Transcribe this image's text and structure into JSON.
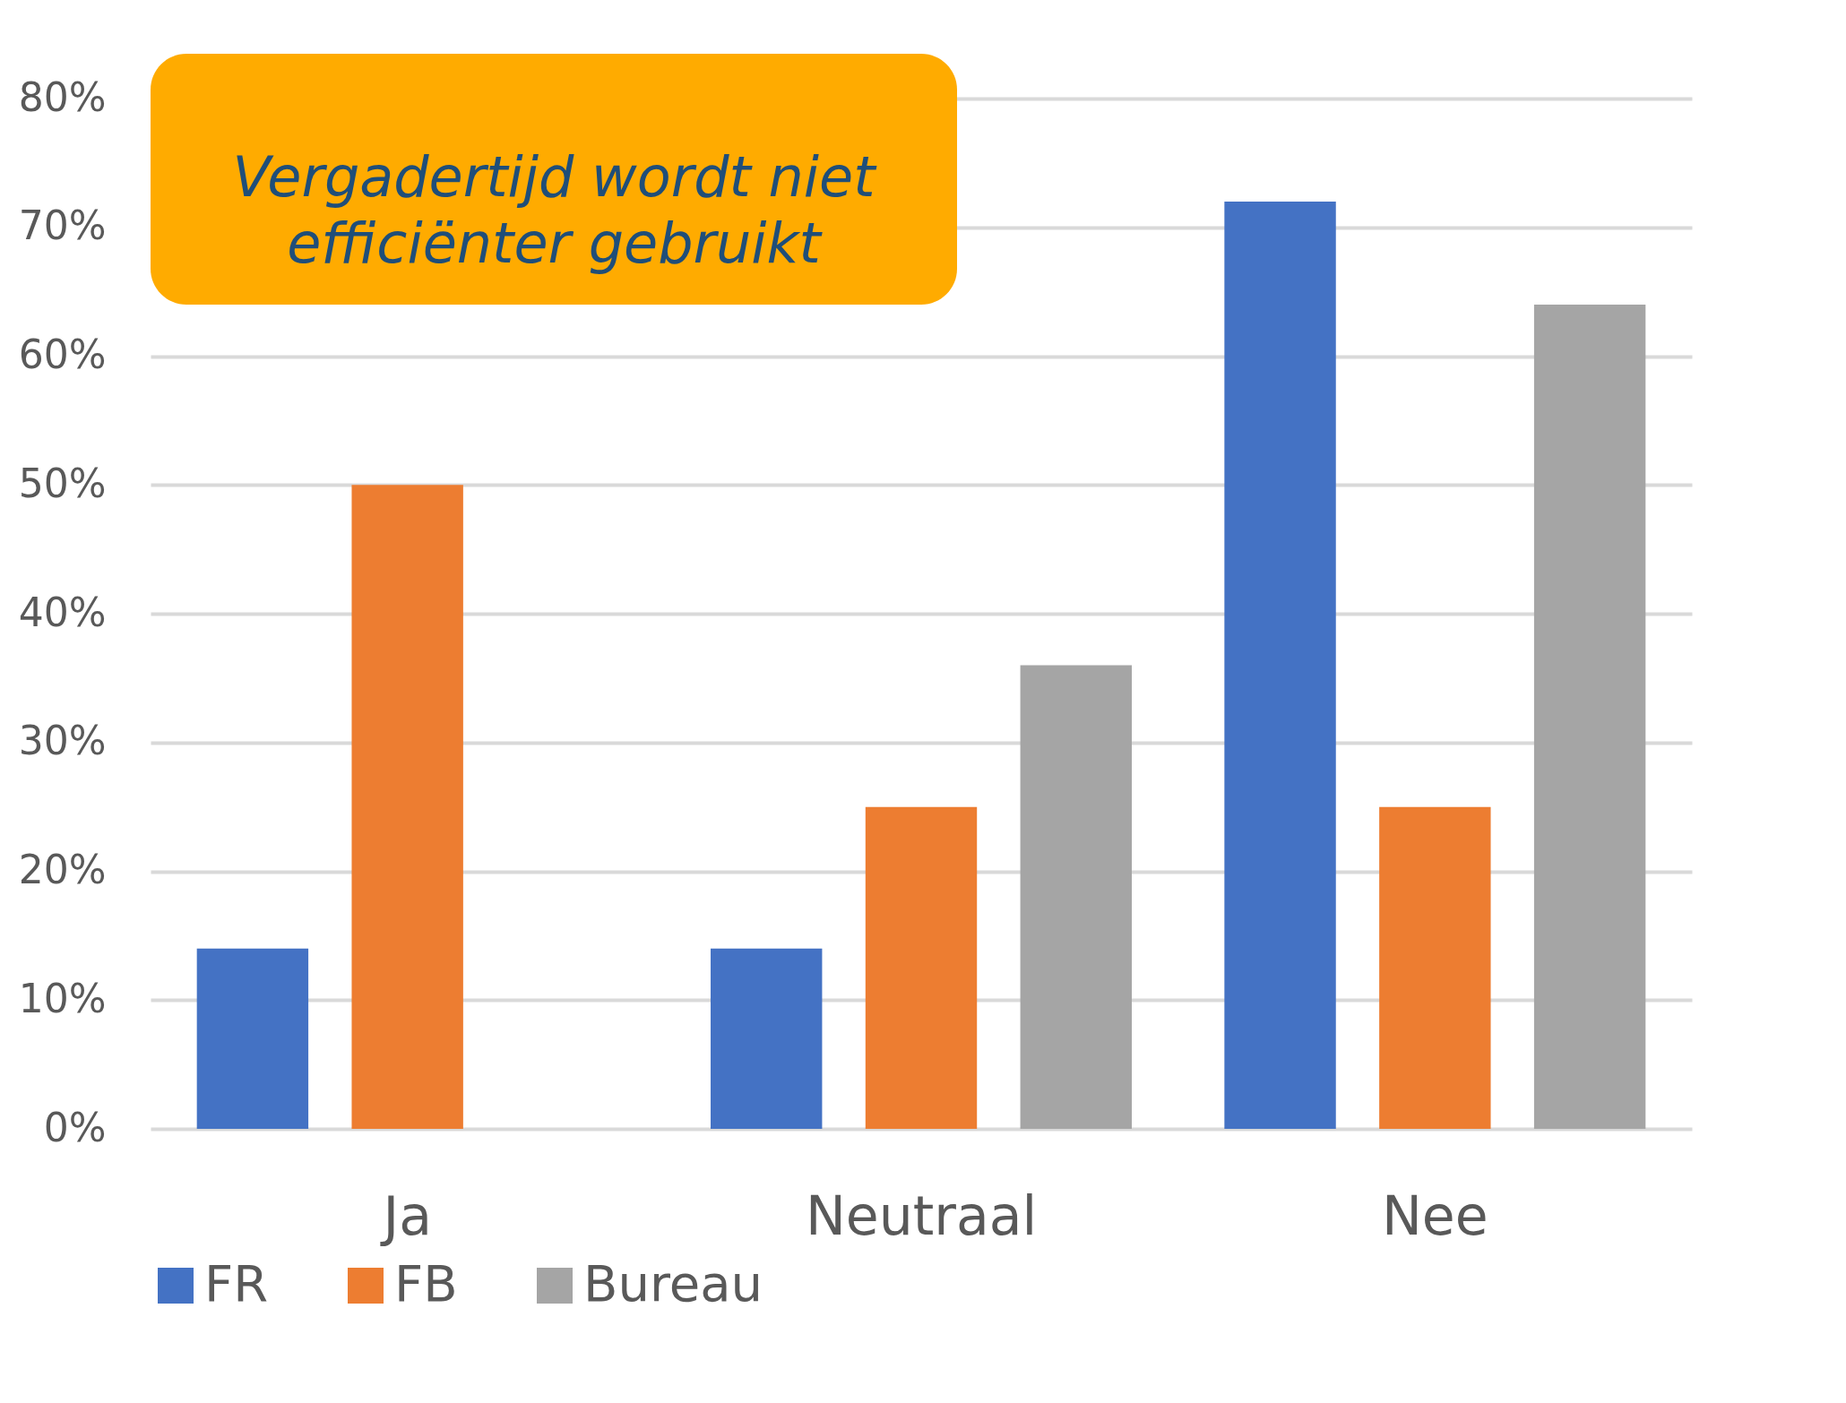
{
  "chart_data": {
    "type": "bar",
    "categories": [
      "Ja",
      "Neutraal",
      "Nee"
    ],
    "series": [
      {
        "name": "FR",
        "color": "#4472c4",
        "values": [
          14,
          14,
          72
        ]
      },
      {
        "name": "FB",
        "color": "#ed7d31",
        "values": [
          50,
          25,
          25
        ]
      },
      {
        "name": "Bureau",
        "color": "#a5a5a5",
        "values": [
          null,
          36,
          64
        ]
      }
    ],
    "ylim": [
      0,
      80
    ],
    "yticks": [
      {
        "value": 0,
        "label": "0%"
      },
      {
        "value": 10,
        "label": "10%"
      },
      {
        "value": 20,
        "label": "20%"
      },
      {
        "value": 30,
        "label": "30%"
      },
      {
        "value": 40,
        "label": "40%"
      },
      {
        "value": 50,
        "label": "50%"
      },
      {
        "value": 60,
        "label": "60%"
      },
      {
        "value": 70,
        "label": "70%"
      },
      {
        "value": 80,
        "label": "80%"
      }
    ],
    "grid": "y",
    "legend": "bottom",
    "annotations": [
      "Vergadertijd wordt niet efficiënter gebruikt"
    ]
  }
}
